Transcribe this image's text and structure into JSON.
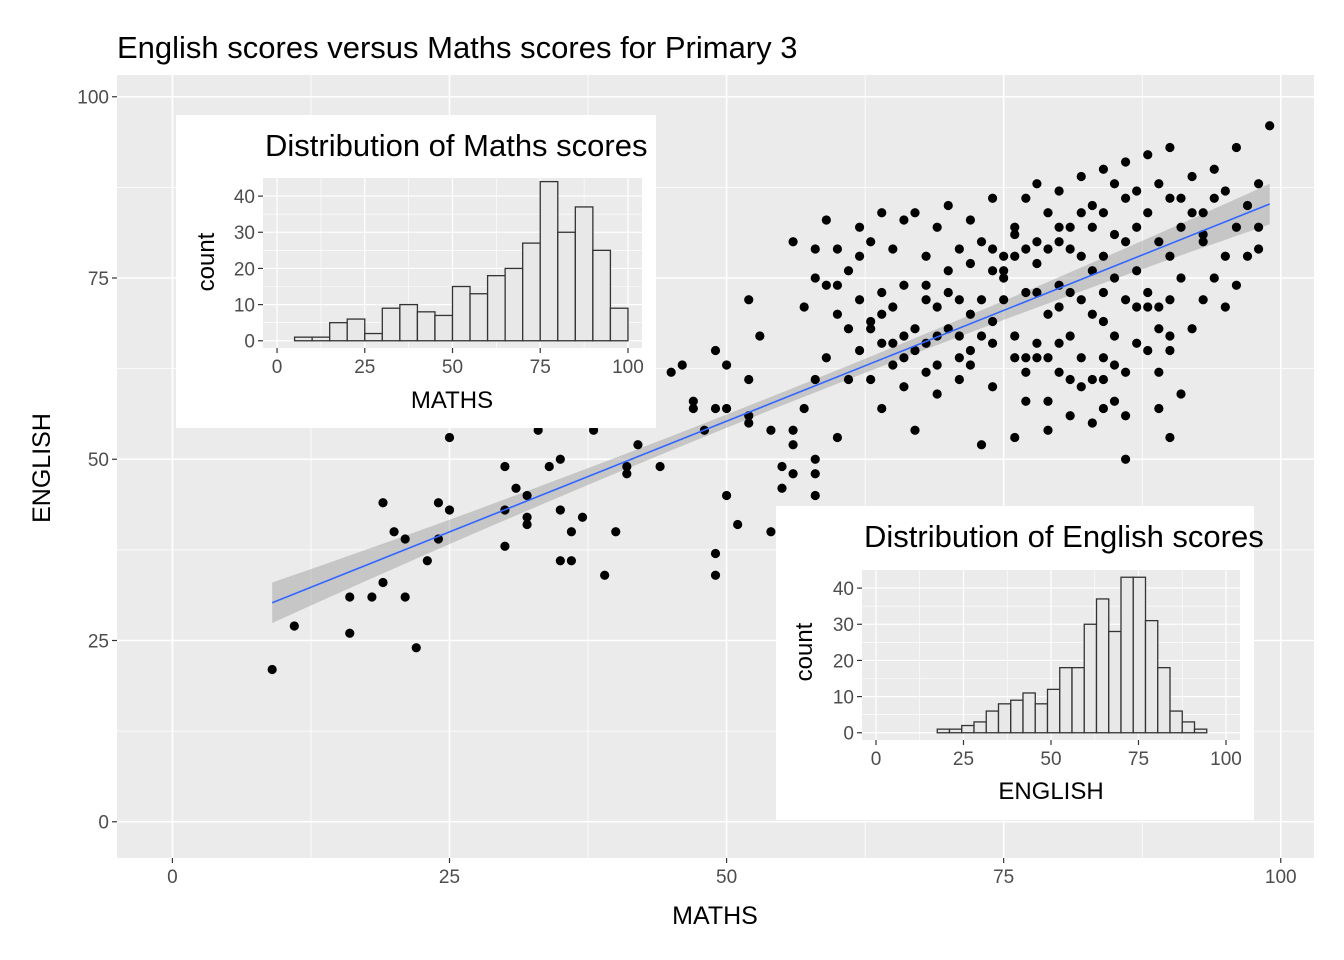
{
  "chart_data": [
    {
      "type": "scatter",
      "title": "English scores versus Maths scores for Primary 3",
      "xlabel": "MATHS",
      "ylabel": "ENGLISH",
      "xlim": [
        -5,
        103
      ],
      "ylim": [
        -5,
        103
      ],
      "x_ticks": [
        "0",
        "25",
        "50",
        "75",
        "100"
      ],
      "y_ticks": [
        "0",
        "25",
        "50",
        "75",
        "100"
      ],
      "grid": true,
      "points": [
        [
          9,
          21
        ],
        [
          11,
          27
        ],
        [
          16,
          26
        ],
        [
          16,
          31
        ],
        [
          18,
          31
        ],
        [
          19,
          33
        ],
        [
          19,
          44
        ],
        [
          20,
          40
        ],
        [
          21,
          31
        ],
        [
          21,
          39
        ],
        [
          22,
          24
        ],
        [
          23,
          36
        ],
        [
          24,
          39
        ],
        [
          24,
          44
        ],
        [
          25,
          43
        ],
        [
          25,
          53
        ],
        [
          30,
          38
        ],
        [
          30,
          43
        ],
        [
          30,
          49
        ],
        [
          31,
          46
        ],
        [
          32,
          41
        ],
        [
          32,
          42
        ],
        [
          32,
          45
        ],
        [
          33,
          54
        ],
        [
          34,
          49
        ],
        [
          35,
          36
        ],
        [
          35,
          43
        ],
        [
          35,
          50
        ],
        [
          36,
          36
        ],
        [
          36,
          40
        ],
        [
          37,
          42
        ],
        [
          38,
          54
        ],
        [
          39,
          34
        ],
        [
          40,
          40
        ],
        [
          41,
          48
        ],
        [
          41,
          49
        ],
        [
          42,
          52
        ],
        [
          43,
          55
        ],
        [
          44,
          49
        ],
        [
          45,
          62
        ],
        [
          46,
          63
        ],
        [
          47,
          57
        ],
        [
          47,
          58
        ],
        [
          48,
          54
        ],
        [
          49,
          34
        ],
        [
          49,
          37
        ],
        [
          49,
          57
        ],
        [
          49,
          65
        ],
        [
          50,
          45
        ],
        [
          50,
          57
        ],
        [
          50,
          63
        ],
        [
          51,
          41
        ],
        [
          52,
          55
        ],
        [
          52,
          56
        ],
        [
          52,
          61
        ],
        [
          52,
          72
        ],
        [
          53,
          67
        ],
        [
          54,
          40
        ],
        [
          54,
          54
        ],
        [
          55,
          46
        ],
        [
          55,
          49
        ],
        [
          56,
          48
        ],
        [
          56,
          52
        ],
        [
          56,
          54
        ],
        [
          56,
          80
        ],
        [
          57,
          57
        ],
        [
          58,
          45
        ],
        [
          58,
          48
        ],
        [
          58,
          50
        ],
        [
          58,
          61
        ],
        [
          58,
          75
        ],
        [
          59,
          64
        ],
        [
          59,
          74
        ],
        [
          60,
          53
        ],
        [
          60,
          74
        ],
        [
          61,
          61
        ],
        [
          61,
          68
        ],
        [
          62,
          65
        ],
        [
          62,
          78
        ],
        [
          63,
          61
        ],
        [
          63,
          68
        ],
        [
          63,
          69
        ],
        [
          64,
          57
        ],
        [
          64,
          66
        ],
        [
          64,
          70
        ],
        [
          65,
          63
        ],
        [
          65,
          66
        ],
        [
          65,
          71
        ],
        [
          66,
          60
        ],
        [
          66,
          64
        ],
        [
          66,
          67
        ],
        [
          67,
          54
        ],
        [
          67,
          65
        ],
        [
          67,
          68
        ],
        [
          68,
          62
        ],
        [
          68,
          66
        ],
        [
          68,
          72
        ],
        [
          69,
          59
        ],
        [
          69,
          63
        ],
        [
          69,
          67
        ],
        [
          69,
          71
        ],
        [
          70,
          68
        ],
        [
          70,
          73
        ],
        [
          71,
          61
        ],
        [
          71,
          64
        ],
        [
          71,
          67
        ],
        [
          71,
          72
        ],
        [
          72,
          63
        ],
        [
          72,
          65
        ],
        [
          72,
          70
        ],
        [
          73,
          52
        ],
        [
          73,
          67
        ],
        [
          73,
          72
        ],
        [
          74,
          60
        ],
        [
          74,
          66
        ],
        [
          74,
          69
        ],
        [
          75,
          72
        ],
        [
          75,
          75
        ],
        [
          76,
          53
        ],
        [
          76,
          64
        ],
        [
          76,
          67
        ],
        [
          77,
          58
        ],
        [
          77,
          62
        ],
        [
          77,
          64
        ],
        [
          77,
          73
        ],
        [
          78,
          64
        ],
        [
          78,
          66
        ],
        [
          78,
          73
        ],
        [
          79,
          54
        ],
        [
          79,
          58
        ],
        [
          79,
          64
        ],
        [
          79,
          70
        ],
        [
          80,
          62
        ],
        [
          80,
          66
        ],
        [
          80,
          71
        ],
        [
          80,
          74
        ],
        [
          81,
          56
        ],
        [
          81,
          61
        ],
        [
          81,
          67
        ],
        [
          81,
          73
        ],
        [
          82,
          60
        ],
        [
          82,
          64
        ],
        [
          82,
          72
        ],
        [
          83,
          55
        ],
        [
          83,
          61
        ],
        [
          83,
          70
        ],
        [
          83,
          76
        ],
        [
          84,
          57
        ],
        [
          84,
          61
        ],
        [
          84,
          64
        ],
        [
          84,
          69
        ],
        [
          84,
          73
        ],
        [
          85,
          58
        ],
        [
          85,
          63
        ],
        [
          85,
          67
        ],
        [
          85,
          75
        ],
        [
          86,
          50
        ],
        [
          86,
          56
        ],
        [
          86,
          62
        ],
        [
          86,
          72
        ],
        [
          87,
          66
        ],
        [
          87,
          71
        ],
        [
          87,
          76
        ],
        [
          88,
          65
        ],
        [
          88,
          71
        ],
        [
          88,
          73
        ],
        [
          89,
          57
        ],
        [
          89,
          62
        ],
        [
          89,
          68
        ],
        [
          89,
          71
        ],
        [
          90,
          53
        ],
        [
          90,
          65
        ],
        [
          90,
          67
        ],
        [
          90,
          72
        ],
        [
          91,
          59
        ],
        [
          91,
          75
        ],
        [
          92,
          68
        ],
        [
          93,
          72
        ],
        [
          93,
          81
        ],
        [
          94,
          75
        ],
        [
          95,
          71
        ],
        [
          96,
          74
        ],
        [
          97,
          78
        ],
        [
          98,
          79
        ],
        [
          98,
          82
        ],
        [
          99,
          96
        ],
        [
          57,
          71
        ],
        [
          58,
          79
        ],
        [
          59,
          83
        ],
        [
          60,
          79
        ],
        [
          61,
          76
        ],
        [
          62,
          82
        ],
        [
          63,
          80
        ],
        [
          64,
          84
        ],
        [
          65,
          79
        ],
        [
          66,
          83
        ],
        [
          67,
          84
        ],
        [
          68,
          78
        ],
        [
          69,
          82
        ],
        [
          70,
          85
        ],
        [
          71,
          79
        ],
        [
          72,
          83
        ],
        [
          73,
          80
        ],
        [
          74,
          86
        ],
        [
          75,
          78
        ],
        [
          76,
          82
        ],
        [
          77,
          86
        ],
        [
          78,
          88
        ],
        [
          79,
          84
        ],
        [
          80,
          87
        ],
        [
          81,
          82
        ],
        [
          82,
          89
        ],
        [
          83,
          85
        ],
        [
          84,
          90
        ],
        [
          85,
          88
        ],
        [
          86,
          91
        ],
        [
          87,
          87
        ],
        [
          88,
          92
        ],
        [
          89,
          88
        ],
        [
          90,
          93
        ],
        [
          91,
          86
        ],
        [
          92,
          89
        ],
        [
          93,
          84
        ],
        [
          94,
          90
        ],
        [
          95,
          87
        ],
        [
          96,
          93
        ],
        [
          97,
          85
        ],
        [
          98,
          88
        ],
        [
          87,
          82
        ],
        [
          89,
          80
        ],
        [
          91,
          82
        ],
        [
          93,
          80
        ],
        [
          95,
          78
        ],
        [
          90,
          78
        ],
        [
          86,
          80
        ],
        [
          84,
          78
        ],
        [
          82,
          78
        ],
        [
          80,
          80
        ],
        [
          78,
          77
        ],
        [
          76,
          78
        ],
        [
          74,
          76
        ],
        [
          72,
          77
        ],
        [
          70,
          76
        ],
        [
          68,
          74
        ],
        [
          66,
          74
        ],
        [
          64,
          73
        ],
        [
          62,
          72
        ],
        [
          60,
          70
        ],
        [
          88,
          84
        ],
        [
          90,
          86
        ],
        [
          92,
          84
        ],
        [
          94,
          86
        ],
        [
          96,
          82
        ],
        [
          86,
          86
        ],
        [
          84,
          84
        ],
        [
          82,
          84
        ],
        [
          80,
          82
        ],
        [
          78,
          80
        ],
        [
          76,
          81
        ],
        [
          74,
          79
        ],
        [
          85,
          81
        ],
        [
          83,
          82
        ],
        [
          81,
          79
        ],
        [
          79,
          79
        ],
        [
          77,
          79
        ],
        [
          75,
          76
        ]
      ],
      "trend": {
        "x": [
          9,
          99
        ],
        "y": [
          30.2,
          85.2
        ],
        "band_halfwidth_ends": 2.8,
        "band_halfwidth_mid": 0.9
      },
      "colors": {
        "points": "#000000",
        "trend_line": "#3366ff",
        "band": "#999999",
        "panel_bg": "#ebebeb",
        "grid": "#ffffff"
      }
    },
    {
      "type": "bar",
      "title": "Distribution of Maths scores",
      "xlabel": "MATHS",
      "ylabel": "count",
      "xlim": [
        -4,
        104
      ],
      "ylim": [
        -2,
        45
      ],
      "x_ticks": [
        "0",
        "25",
        "50",
        "75",
        "100"
      ],
      "y_ticks": [
        "0",
        "10",
        "20",
        "30",
        "40"
      ],
      "bin_width": 5,
      "bin_centers": [
        7.5,
        12.5,
        17.5,
        22.5,
        27.5,
        32.5,
        37.5,
        42.5,
        47.5,
        52.5,
        57.5,
        62.5,
        67.5,
        72.5,
        77.5,
        82.5,
        87.5,
        92.5,
        97.5
      ],
      "counts": [
        1,
        1,
        5,
        6,
        2,
        9,
        10,
        8,
        7,
        15,
        13,
        18,
        20,
        27,
        44,
        30,
        37,
        25,
        9
      ],
      "colors": {
        "fill": "#e8e8e8",
        "border": "#333333"
      }
    },
    {
      "type": "bar",
      "title": "Distribution of English scores",
      "xlabel": "ENGLISH",
      "ylabel": "count",
      "xlim": [
        -4,
        104
      ],
      "ylim": [
        -2,
        45
      ],
      "x_ticks": [
        "0",
        "25",
        "50",
        "75",
        "100"
      ],
      "y_ticks": [
        "0",
        "10",
        "20",
        "30",
        "40"
      ],
      "bin_width": 3.5,
      "bin_centers": [
        19.25,
        22.75,
        26.25,
        29.75,
        33.25,
        36.75,
        40.25,
        43.75,
        47.25,
        50.75,
        54.25,
        57.75,
        61.25,
        64.75,
        68.25,
        71.75,
        75.25,
        78.75,
        82.25,
        85.75,
        89.25,
        92.75
      ],
      "counts": [
        1,
        1,
        2,
        3,
        6,
        8,
        9,
        11,
        8,
        12,
        18,
        18,
        30,
        37,
        28,
        43,
        43,
        31,
        18,
        6,
        3,
        1
      ],
      "colors": {
        "fill": "#e8e8e8",
        "border": "#333333"
      }
    }
  ]
}
